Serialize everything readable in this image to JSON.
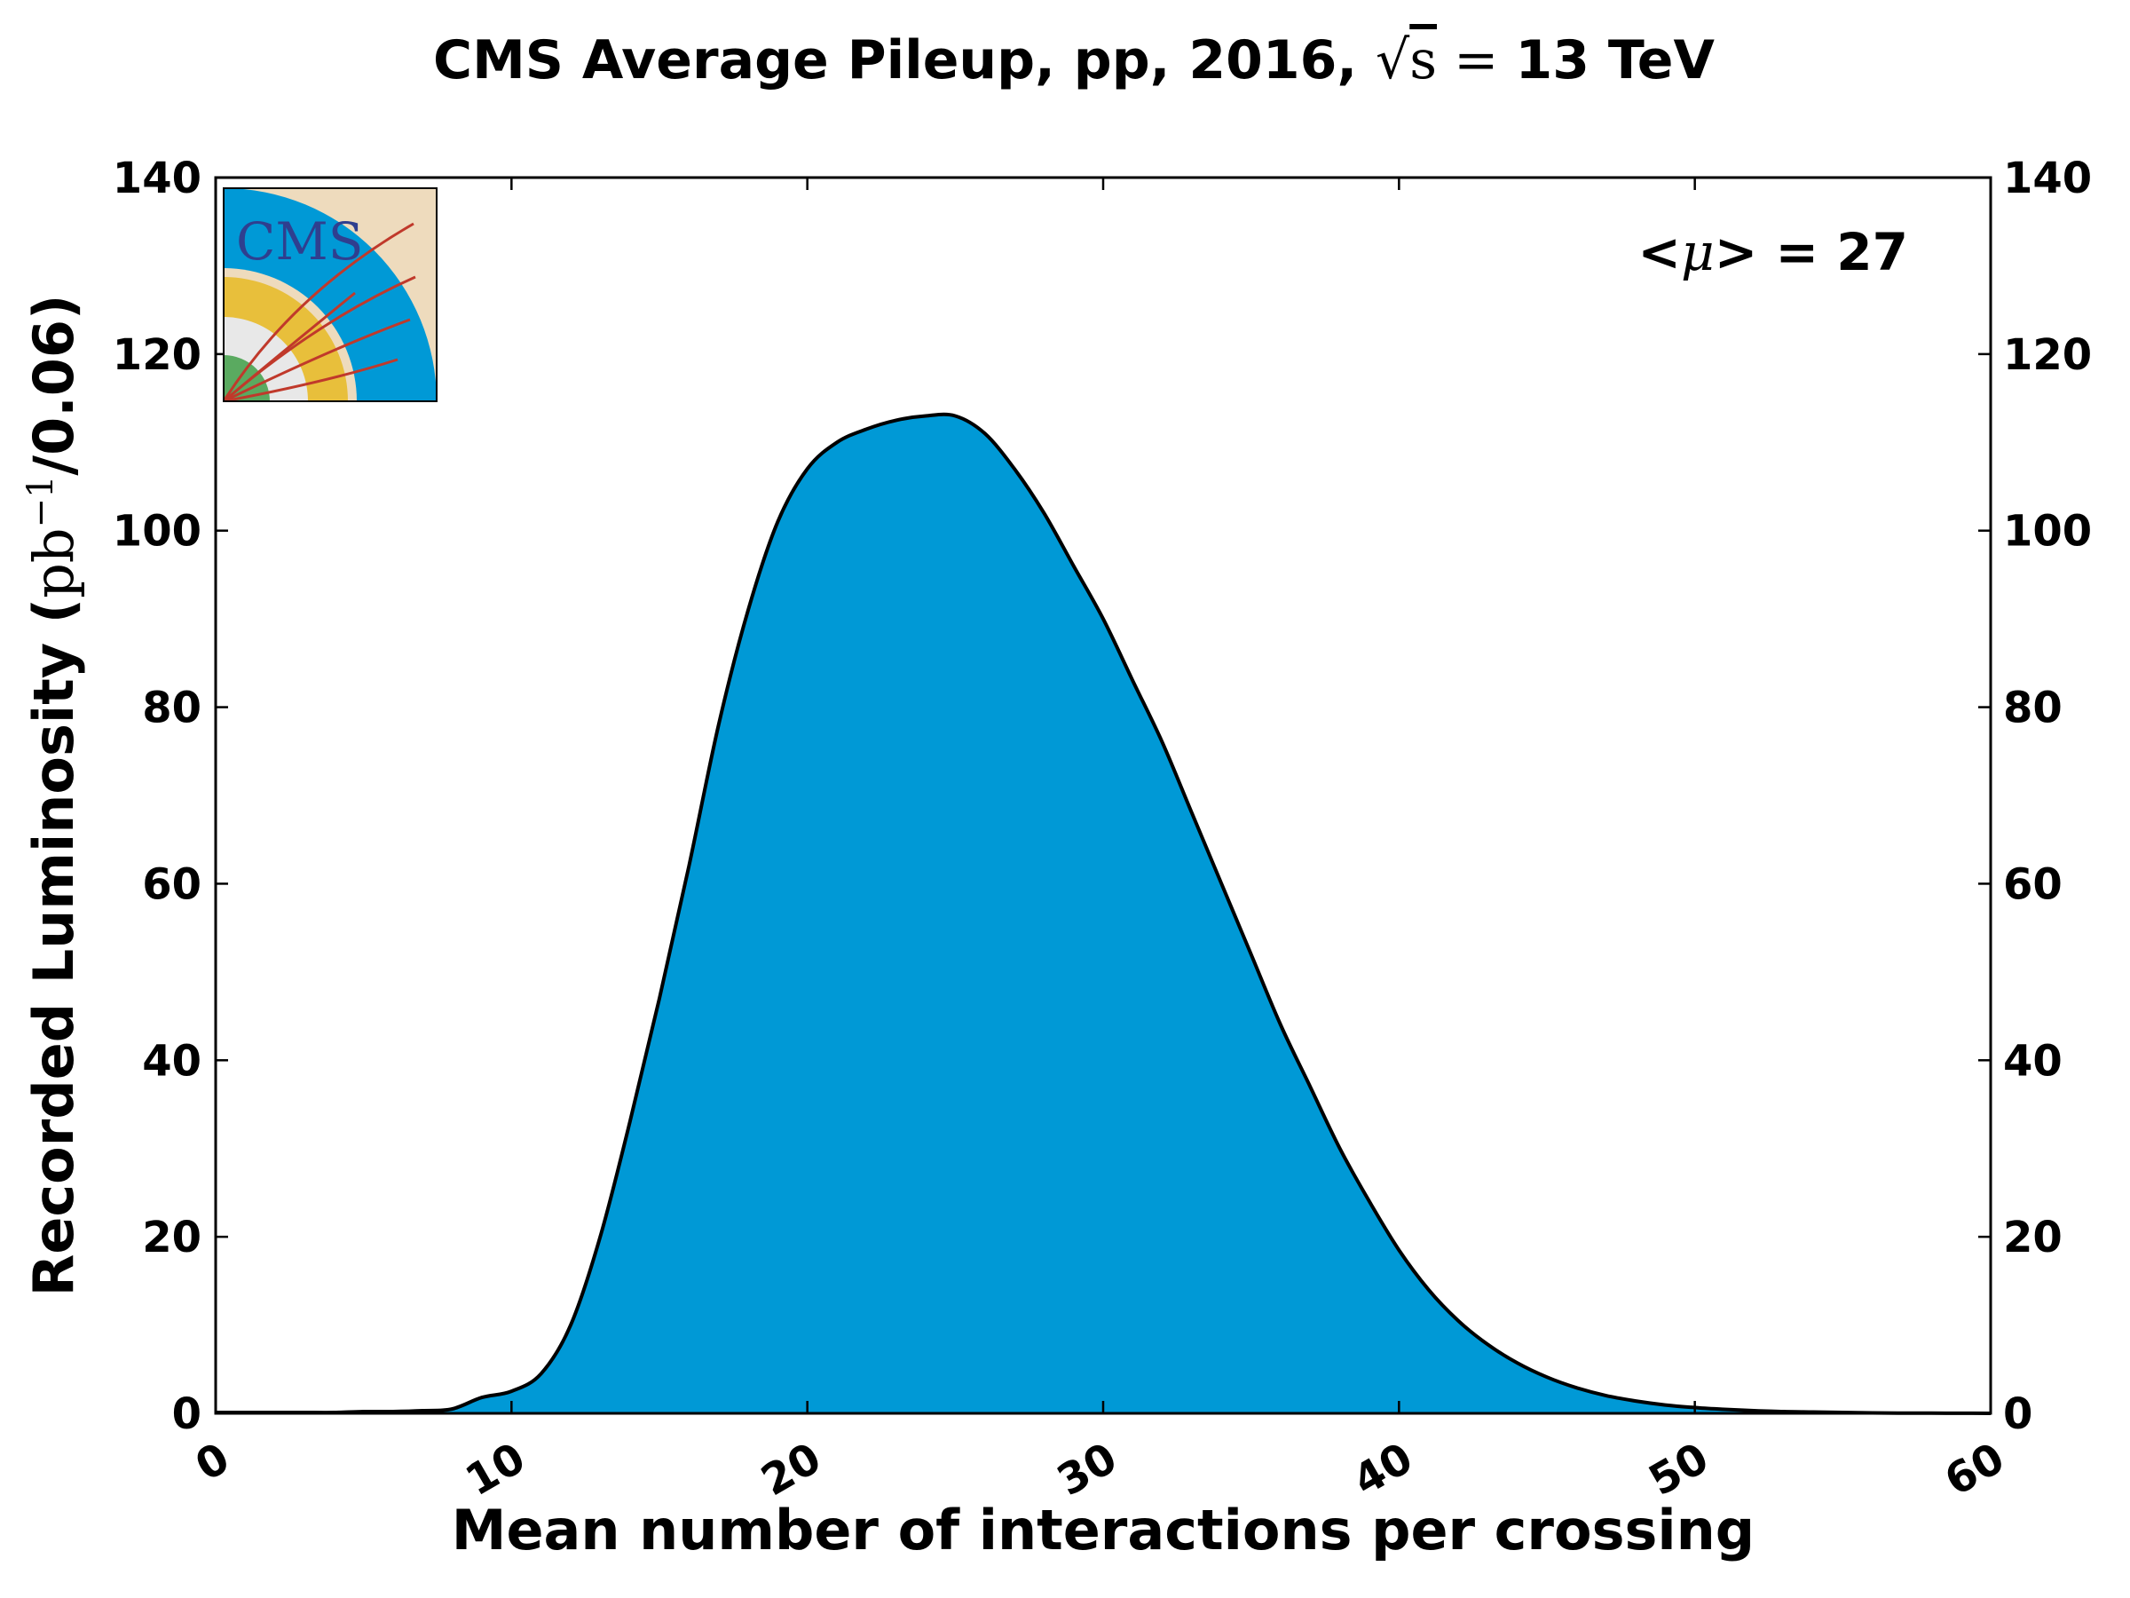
{
  "chart_data": {
    "type": "area",
    "title": {
      "prefix": "CMS Average Pileup, pp, 2016, ",
      "sqrt_symbol": "√",
      "sqrt_var": "s",
      "equals": " = ",
      "suffix": "13 TeV"
    },
    "xlabel": "Mean number of interactions per crossing",
    "ylabel": {
      "prefix": "Recorded Luminosity (",
      "unit_base": "pb",
      "unit_exp": "−1",
      "suffix": "/0.06)"
    },
    "annotation": {
      "prefix": "<",
      "mu": "μ",
      "suffix": "> = 27"
    },
    "xlim": [
      0,
      60
    ],
    "ylim": [
      0,
      140
    ],
    "x_ticks": [
      0,
      10,
      20,
      30,
      40,
      50,
      60
    ],
    "y_ticks": [
      0,
      20,
      40,
      60,
      80,
      100,
      120,
      140
    ],
    "grid": false,
    "fill_color": "#0099d6",
    "line_color": "#000000",
    "series": [
      {
        "x": [
          0,
          1,
          2,
          3,
          4,
          5,
          6,
          7,
          8,
          9,
          10,
          11,
          12,
          13,
          14,
          15,
          16,
          17,
          18,
          19,
          20,
          21,
          22,
          23,
          24,
          25,
          26,
          27,
          28,
          29,
          30,
          31,
          32,
          33,
          34,
          35,
          36,
          37,
          38,
          39,
          40,
          41,
          42,
          43,
          44,
          45,
          46,
          47,
          48,
          49,
          50,
          51,
          52,
          53,
          54,
          55,
          56,
          57,
          58,
          59,
          60
        ],
        "values": [
          0.1,
          0.1,
          0.1,
          0.1,
          0.1,
          0.2,
          0.2,
          0.3,
          0.5,
          1.8,
          2.5,
          4.5,
          10,
          20,
          33,
          47,
          62,
          78,
          91,
          101,
          107,
          110,
          111.5,
          112.5,
          113,
          113,
          111,
          107,
          102,
          96,
          90,
          83,
          76,
          68,
          60,
          52,
          44,
          37,
          30,
          24,
          18.5,
          14,
          10.5,
          7.8,
          5.7,
          4.1,
          2.9,
          2.0,
          1.4,
          0.95,
          0.65,
          0.45,
          0.3,
          0.2,
          0.15,
          0.1,
          0.05,
          0.03,
          0.02,
          0.01,
          0
        ]
      }
    ]
  },
  "logo": {
    "text": "CMS",
    "colors": {
      "background": "#eedbbd",
      "blue": "#0099d6",
      "yellow": "#e8bf3b",
      "grey": "#e8e8e8",
      "green": "#5aaa60",
      "tracks": "#c0392b",
      "text": "#2f3f8f"
    }
  }
}
